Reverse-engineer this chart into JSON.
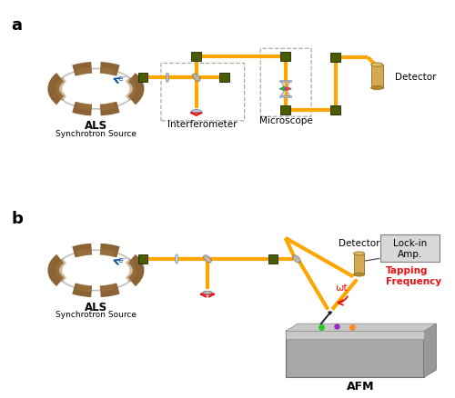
{
  "title_a": "a",
  "title_b": "b",
  "label_als": "ALS",
  "label_synchrotron": "Synchrotron Source",
  "label_interferometer": "Interferometer",
  "label_microscope": "Microscope",
  "label_detector_a": "Detector",
  "label_detector_b": "Detector",
  "label_lockin": "Lock-in\nAmp.",
  "label_tapping": "Tapping\nFrequency",
  "label_wt": "ωt",
  "label_afm": "AFM",
  "beam_color": "#FFA500",
  "mount_color": "#4A5C00",
  "synchrotron_brown": "#8B6334",
  "lens_color": "#C8DCF0",
  "detector_color": "#D4A855",
  "bg_color": "#FFFFFF",
  "red_color": "#EE1111",
  "lockin_color": "#D8D8D8",
  "afm_color": "#A8A8A8",
  "afm_top_color": "#C8C8C8",
  "dashed_box_color": "#AAAAAA"
}
